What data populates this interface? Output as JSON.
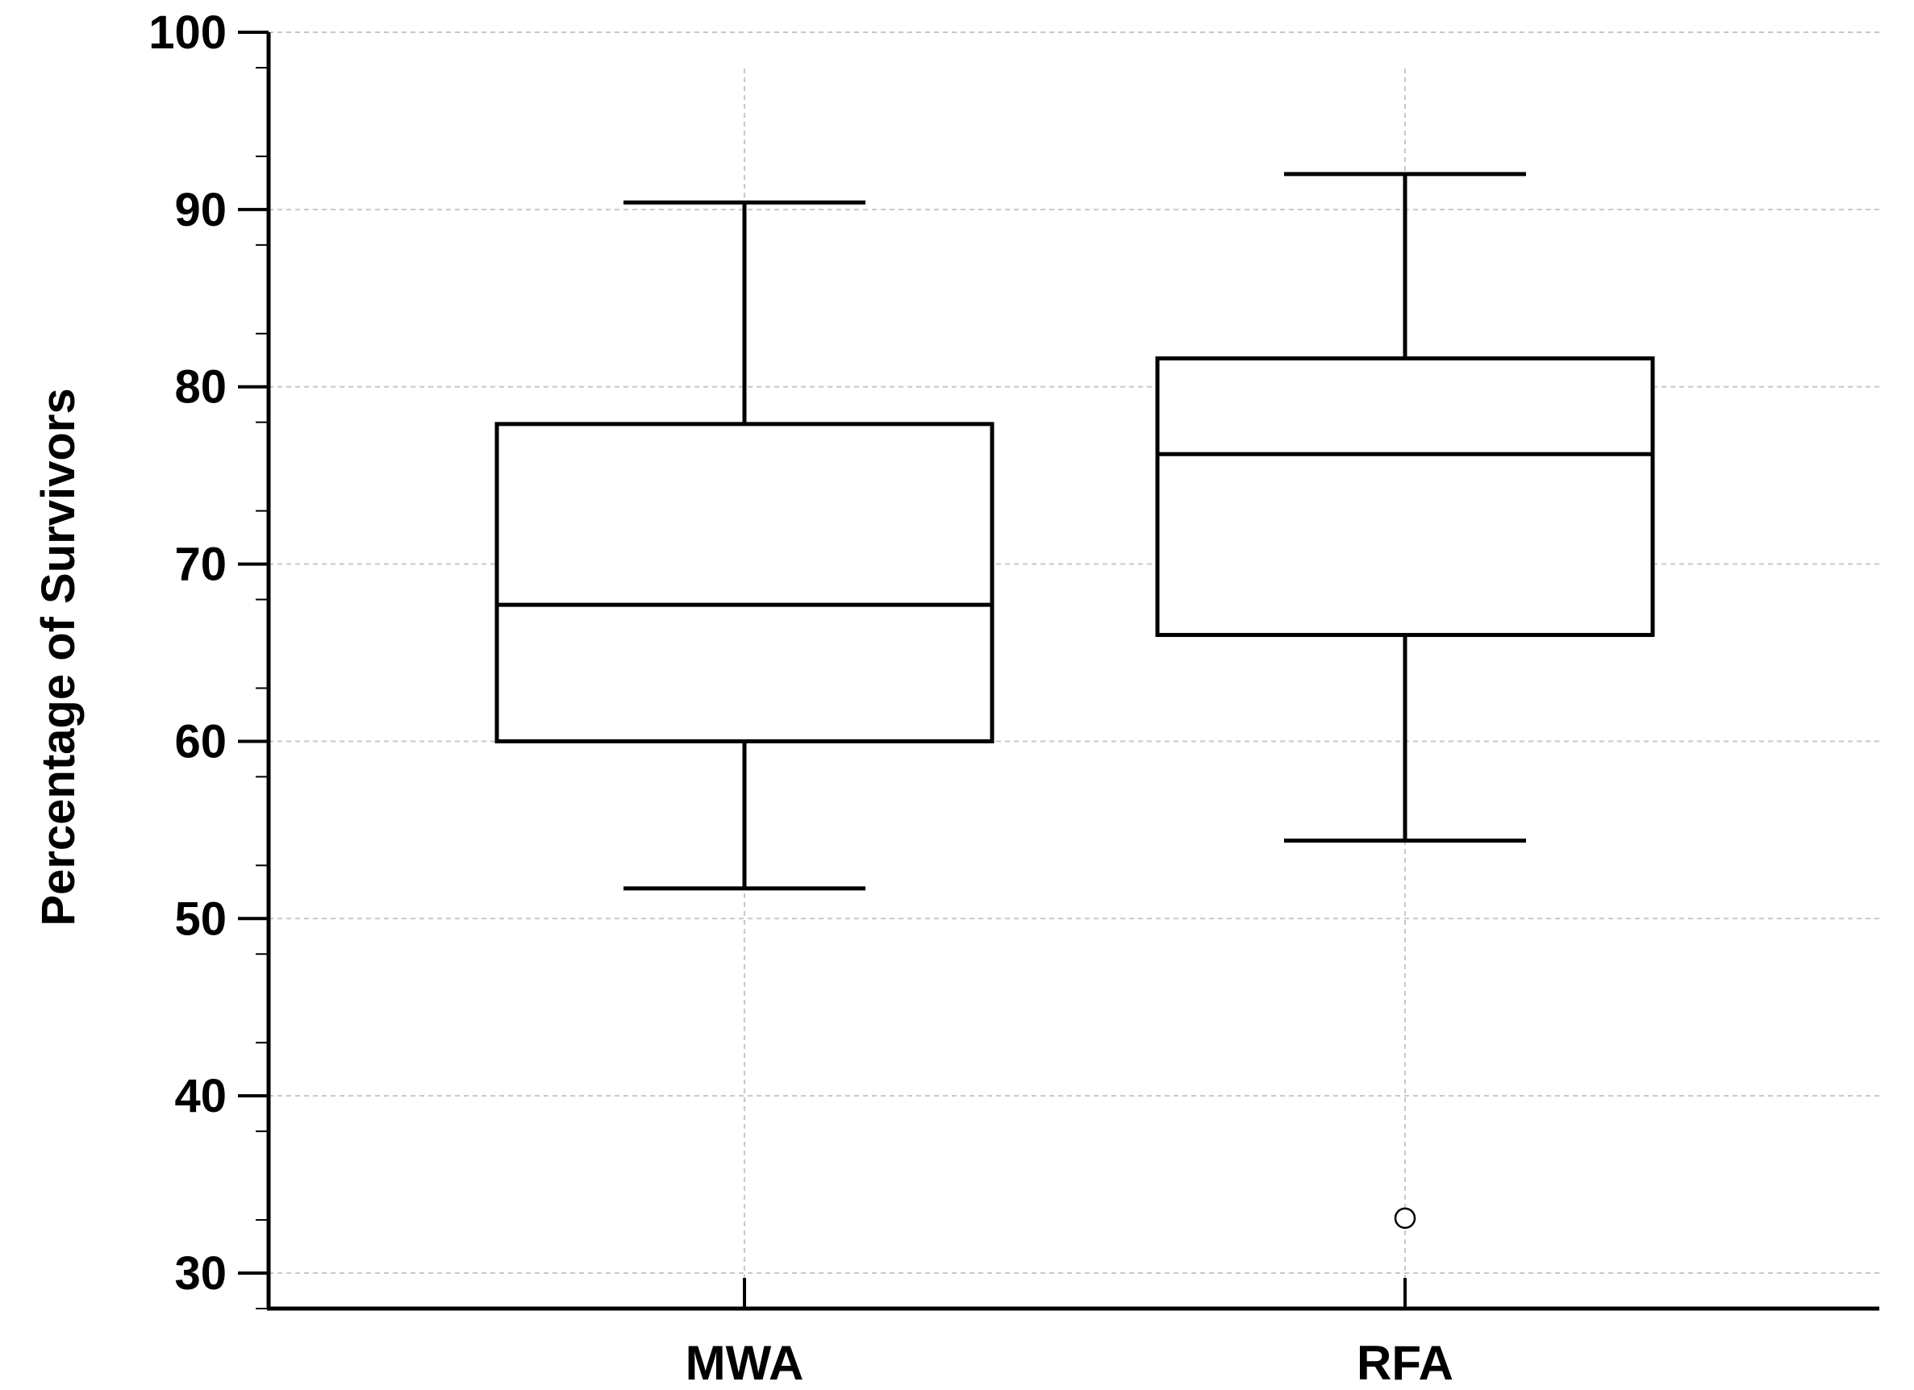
{
  "chart_data": {
    "type": "box",
    "title": "",
    "xlabel": "",
    "ylabel": "Percentage of Survivors",
    "ylim": [
      28,
      100
    ],
    "yticks": [
      30,
      40,
      50,
      60,
      70,
      80,
      90,
      100
    ],
    "y_minor_step": 5,
    "grid": true,
    "categories": [
      "MWA",
      "RFA"
    ],
    "boxes": [
      {
        "category": "MWA",
        "whisker_low": 51.7,
        "q1": 60.0,
        "median": 67.7,
        "q3": 77.9,
        "whisker_high": 90.4,
        "outliers": []
      },
      {
        "category": "RFA",
        "whisker_low": 54.4,
        "q1": 66.0,
        "median": 76.2,
        "q3": 81.6,
        "whisker_high": 92.0,
        "outliers": [
          33.1
        ]
      }
    ],
    "colors": {
      "box_stroke": "#000000",
      "box_fill": "#ffffff",
      "grid": "#c8c8c8",
      "outlier_fill": "#ffffff"
    }
  }
}
